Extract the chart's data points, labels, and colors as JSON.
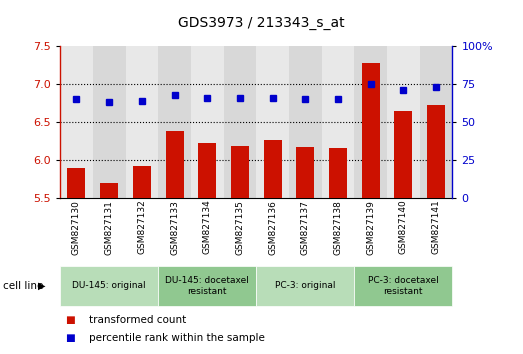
{
  "title": "GDS3973 / 213343_s_at",
  "samples": [
    "GSM827130",
    "GSM827131",
    "GSM827132",
    "GSM827133",
    "GSM827134",
    "GSM827135",
    "GSM827136",
    "GSM827137",
    "GSM827138",
    "GSM827139",
    "GSM827140",
    "GSM827141"
  ],
  "bar_values": [
    5.9,
    5.7,
    5.92,
    6.38,
    6.23,
    6.19,
    6.27,
    6.17,
    6.16,
    7.28,
    6.65,
    6.72
  ],
  "dot_values": [
    65,
    63,
    64,
    68,
    66,
    66,
    66,
    65,
    65,
    75,
    71,
    73
  ],
  "bar_color": "#cc1100",
  "dot_color": "#0000cc",
  "ylim_left": [
    5.5,
    7.5
  ],
  "ylim_right": [
    0,
    100
  ],
  "yticks_left": [
    5.5,
    6.0,
    6.5,
    7.0,
    7.5
  ],
  "yticks_right": [
    0,
    25,
    50,
    75,
    100
  ],
  "ytick_labels_right": [
    "0",
    "25",
    "50",
    "75",
    "100%"
  ],
  "grid_values": [
    6.0,
    6.5,
    7.0
  ],
  "cell_line_groups": [
    {
      "label": "DU-145: original",
      "start": 0,
      "end": 3,
      "color": "#b8ddb8"
    },
    {
      "label": "DU-145: docetaxel\nresistant",
      "start": 3,
      "end": 6,
      "color": "#90c890"
    },
    {
      "label": "PC-3: original",
      "start": 6,
      "end": 9,
      "color": "#b8ddb8"
    },
    {
      "label": "PC-3: docetaxel\nresistant",
      "start": 9,
      "end": 12,
      "color": "#90c890"
    }
  ],
  "legend_bar_label": "transformed count",
  "legend_dot_label": "percentile rank within the sample",
  "cell_line_label": "cell line",
  "plot_bg_color": "#d8d8d8",
  "col_bg_even": "#e0e0e0",
  "col_bg_odd": "#d0d0d0"
}
